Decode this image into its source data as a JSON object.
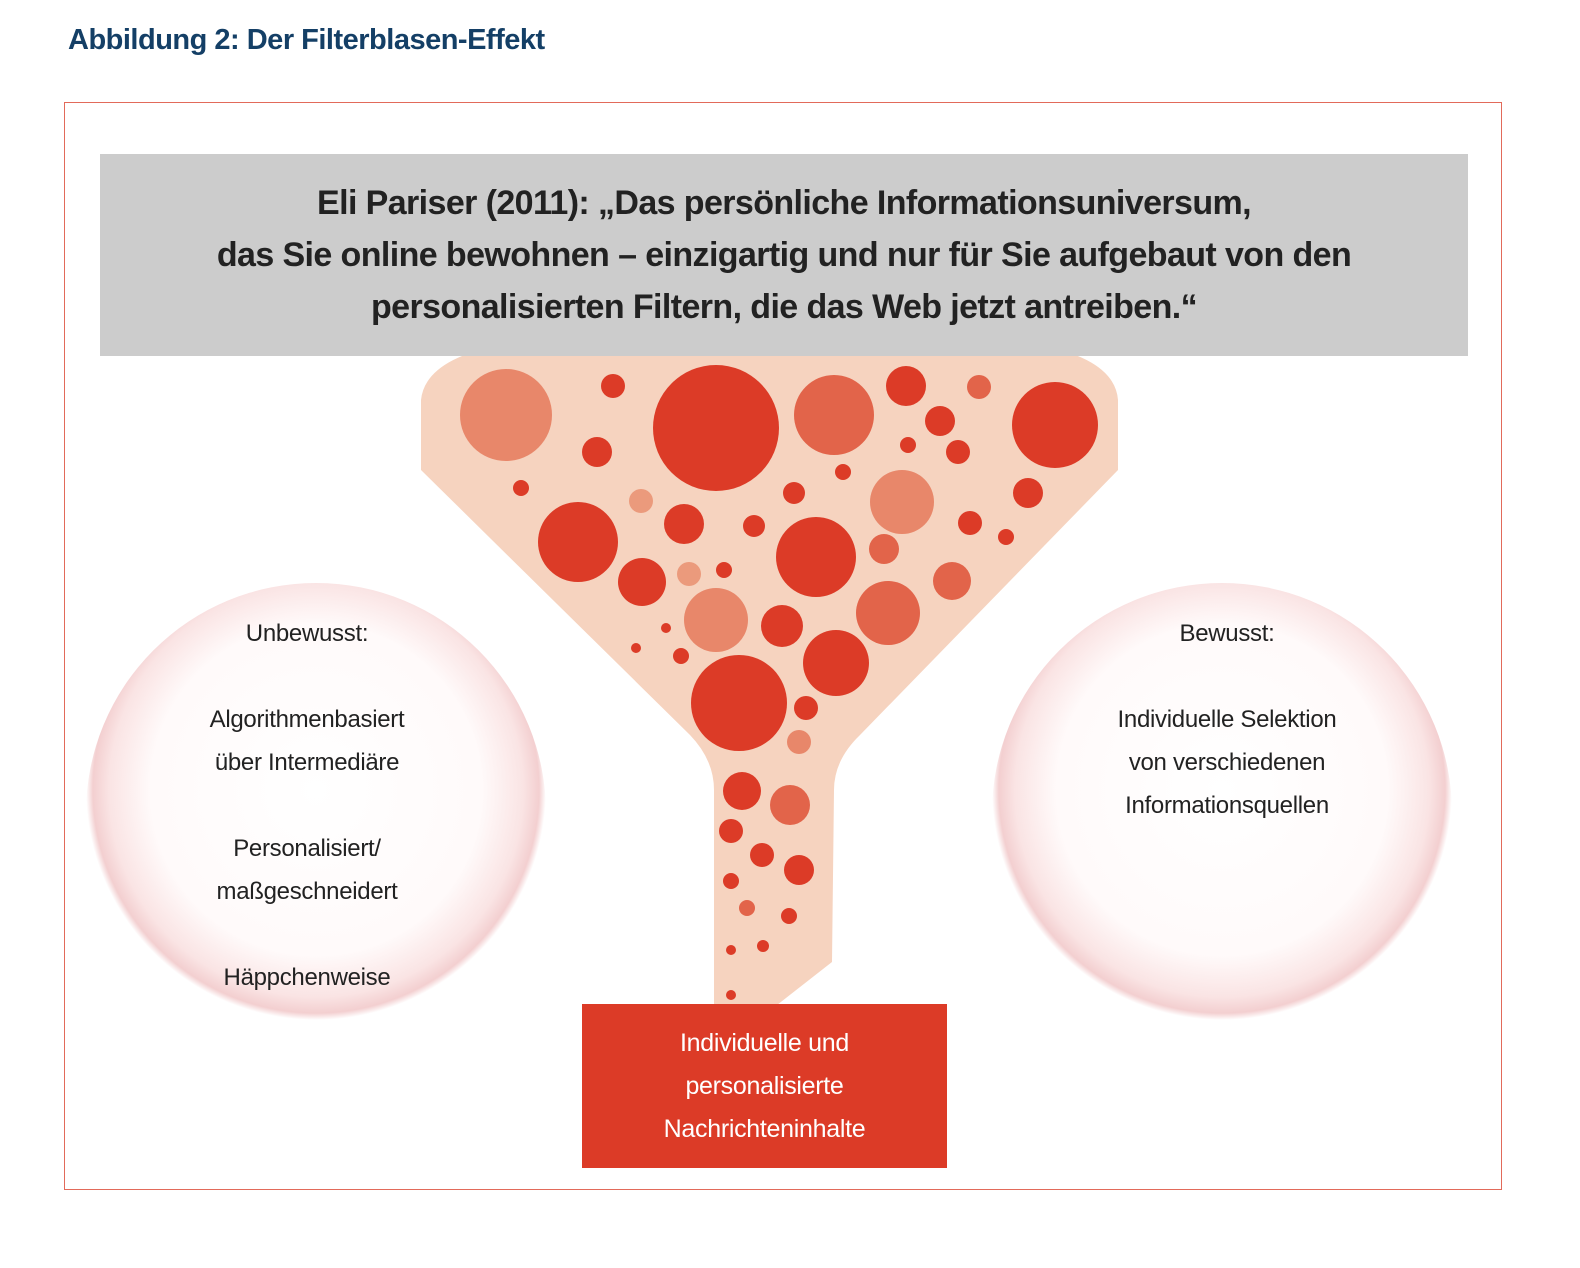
{
  "title": "Abbildung 2: Der Filterblasen-Effekt",
  "quote": {
    "lines": [
      "Eli Pariser (2011): „Das persönliche Informationsuniversum,",
      "das Sie online bewohnen – einzigartig und nur für Sie aufgebaut von den",
      "personalisierten Filtern, die das Web jetzt antreiben.“"
    ]
  },
  "left_bubble": {
    "heading": "Unbewusst:",
    "items": [
      [
        "Algorithmenbasiert",
        "über Intermediäre"
      ],
      [
        "Personalisiert/",
        "maßgeschneidert"
      ],
      [
        "Häppchenweise"
      ]
    ]
  },
  "right_bubble": {
    "heading": "Bewusst:",
    "lines": [
      "Individuelle Selektion",
      "von verschiedenen",
      "Informationsquellen"
    ]
  },
  "output_box": {
    "lines": [
      "Individuelle und",
      "personalisierte",
      "Nachrichteninhalte"
    ]
  },
  "colors": {
    "title": "#143f66",
    "frame": "#e26a5a",
    "quote_bg": "#cccccc",
    "funnel": "#f6d3bf",
    "dot_dark": "#dc3b27",
    "dot_mid": "#e2644a",
    "dot_light": "#e8876a",
    "dot_pale": "#eb9a7c",
    "output_box": "#dc3b27"
  }
}
